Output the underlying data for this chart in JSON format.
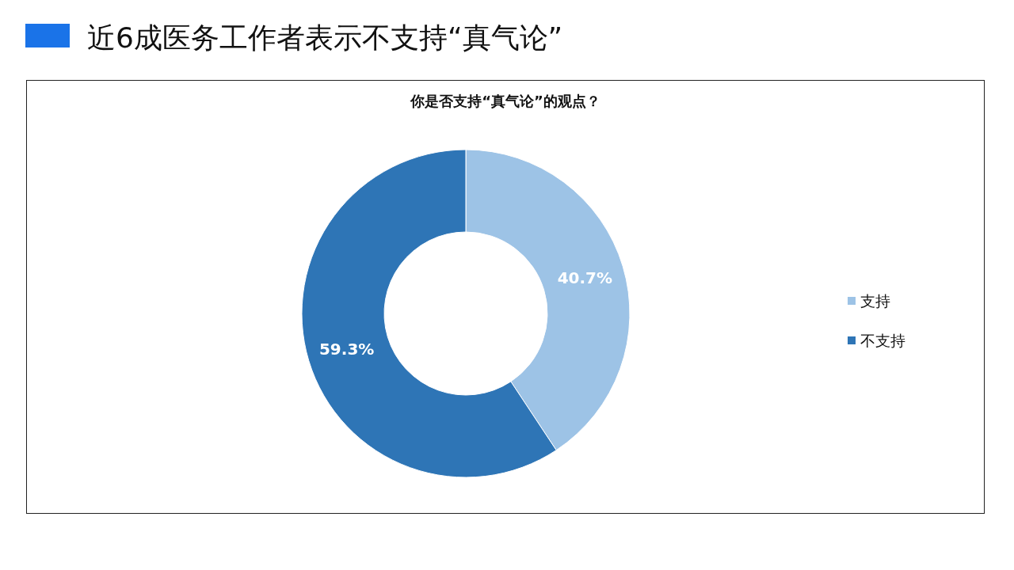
{
  "chart_data": {
    "type": "donut",
    "title": "近6成医务工作者表示不支持“真气论”",
    "subtitle": "你是否支持“真气论”的观点？",
    "categories": [
      "支持",
      "不支持"
    ],
    "values": [
      40.7,
      59.3
    ],
    "colors": [
      "#9dc3e6",
      "#2e75b6"
    ],
    "value_labels": [
      "40.7%",
      "59.3%"
    ],
    "legend": "right"
  }
}
